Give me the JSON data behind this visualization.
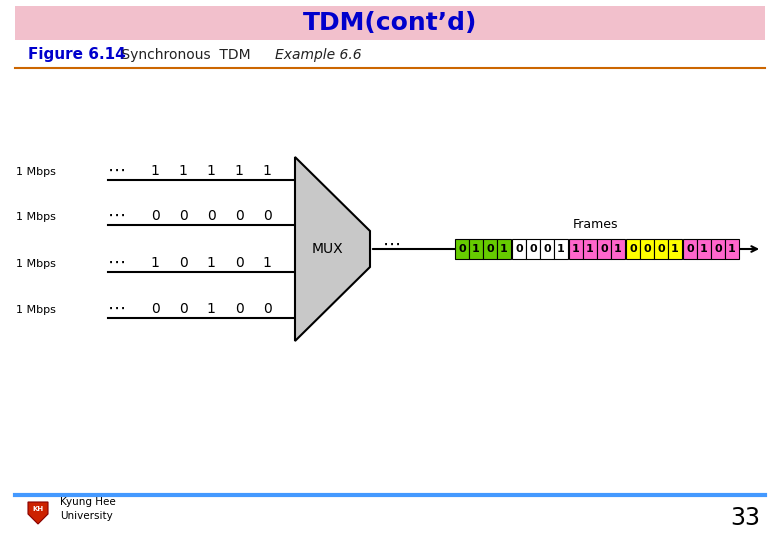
{
  "title": "TDM(cont’d)",
  "title_bg": "#f2c0cc",
  "title_color": "#0000cc",
  "subtitle_fig": "Figure 6.14",
  "subtitle_text": " Synchronous  TDM ",
  "subtitle_italic": "Example 6.6",
  "line_color": "#cc6600",
  "bg_color": "#ffffff",
  "input_labels": [
    "1 Mbps",
    "1 Mbps",
    "1 Mbps",
    "1 Mbps"
  ],
  "input_bits": [
    [
      "1",
      "1",
      "1",
      "1",
      "1"
    ],
    [
      "0",
      "0",
      "0",
      "0",
      "0"
    ],
    [
      "1",
      "0",
      "1",
      "0",
      "1"
    ],
    [
      "0",
      "0",
      "1",
      "0",
      "0"
    ]
  ],
  "mux_label": "MUX",
  "frames_label": "Frames",
  "frame_data": [
    "0101",
    "0001",
    "1101",
    "0001",
    "0101"
  ],
  "frame_colors": [
    "#66cc00",
    "#ffffff",
    "#ff66cc",
    "#ffff00",
    "#ff66cc"
  ],
  "frame_border": "#000000",
  "footer_line_color": "#4499ff",
  "page_number": "33",
  "univ_text": "Kyung Hee\nUniversity"
}
